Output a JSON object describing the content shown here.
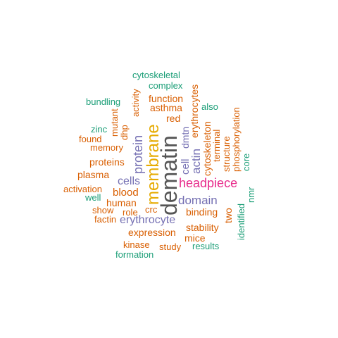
{
  "palette": {
    "orange": "#D95F02",
    "green": "#1B9E77",
    "purple": "#7570B3",
    "gold": "#E6AB02",
    "magenta": "#E7298A",
    "gray": "#555555"
  },
  "words": [
    {
      "text": "dematin",
      "color": "#555555"
    },
    {
      "text": "membrane",
      "color": "#E6AB02"
    },
    {
      "text": "headpiece",
      "color": "#E7298A"
    },
    {
      "text": "protein",
      "color": "#7570B3"
    },
    {
      "text": "domain",
      "color": "#7570B3"
    },
    {
      "text": "erythrocyte",
      "color": "#7570B3"
    },
    {
      "text": "cells",
      "color": "#7570B3"
    },
    {
      "text": "actin",
      "color": "#7570B3"
    },
    {
      "text": "cell",
      "color": "#7570B3"
    },
    {
      "text": "dmtn",
      "color": "#7570B3"
    },
    {
      "text": "cytoskeletal",
      "color": "#1B9E77"
    },
    {
      "text": "complex",
      "color": "#1B9E77"
    },
    {
      "text": "activity",
      "color": "#D95F02"
    },
    {
      "text": "function",
      "color": "#D95F02"
    },
    {
      "text": "erythrocytes",
      "color": "#D95F02"
    },
    {
      "text": "bundling",
      "color": "#1B9E77"
    },
    {
      "text": "asthma",
      "color": "#D95F02"
    },
    {
      "text": "also",
      "color": "#1B9E77"
    },
    {
      "text": "mutant",
      "color": "#D95F02"
    },
    {
      "text": "red",
      "color": "#D95F02"
    },
    {
      "text": "zinc",
      "color": "#1B9E77"
    },
    {
      "text": "dhp",
      "color": "#D95F02"
    },
    {
      "text": "found",
      "color": "#D95F02"
    },
    {
      "text": "memory",
      "color": "#D95F02"
    },
    {
      "text": "phosphorylation",
      "color": "#D95F02"
    },
    {
      "text": "structure",
      "color": "#D95F02"
    },
    {
      "text": "terminal",
      "color": "#D95F02"
    },
    {
      "text": "cytoskeleton",
      "color": "#D95F02"
    },
    {
      "text": "core",
      "color": "#1B9E77"
    },
    {
      "text": "proteins",
      "color": "#D95F02"
    },
    {
      "text": "plasma",
      "color": "#D95F02"
    },
    {
      "text": "nmr",
      "color": "#1B9E77"
    },
    {
      "text": "activation",
      "color": "#D95F02"
    },
    {
      "text": "blood",
      "color": "#D95F02"
    },
    {
      "text": "well",
      "color": "#1B9E77"
    },
    {
      "text": "human",
      "color": "#D95F02"
    },
    {
      "text": "identified",
      "color": "#1B9E77"
    },
    {
      "text": "show",
      "color": "#D95F02"
    },
    {
      "text": "role",
      "color": "#D95F02"
    },
    {
      "text": "crc",
      "color": "#D95F02"
    },
    {
      "text": "binding",
      "color": "#D95F02"
    },
    {
      "text": "two",
      "color": "#D95F02"
    },
    {
      "text": "factin",
      "color": "#D95F02"
    },
    {
      "text": "stability",
      "color": "#D95F02"
    },
    {
      "text": "expression",
      "color": "#D95F02"
    },
    {
      "text": "mice",
      "color": "#D95F02"
    },
    {
      "text": "kinase",
      "color": "#D95F02"
    },
    {
      "text": "study",
      "color": "#D95F02"
    },
    {
      "text": "results",
      "color": "#1B9E77"
    },
    {
      "text": "formation",
      "color": "#1B9E77"
    }
  ]
}
